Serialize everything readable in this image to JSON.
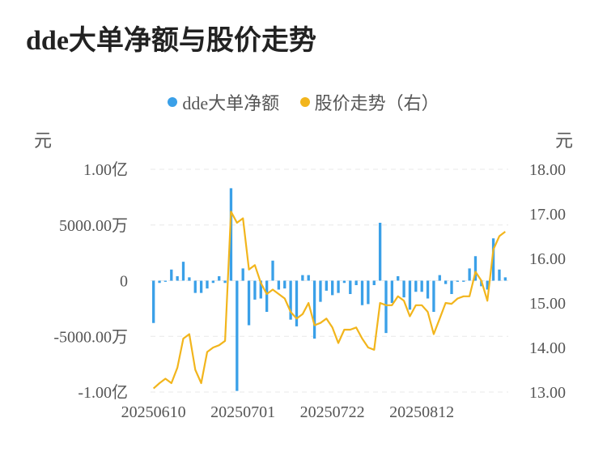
{
  "title": "dde大单净额与股价走势",
  "legend": {
    "bar_label": "dde大单净额",
    "line_label": "股价走势（右）"
  },
  "units": {
    "left": "元",
    "right": "元"
  },
  "colors": {
    "bar": "#3aa0e8",
    "line": "#f2b51c"
  },
  "chart_data": {
    "type": "bar+line",
    "title": "dde大单净额与股价走势",
    "left_axis": {
      "min": -10000,
      "max": 10000,
      "ticks": [
        {
          "value": 10000,
          "label": "1.00亿"
        },
        {
          "value": 5000,
          "label": "5000.00万"
        },
        {
          "value": 0,
          "label": "0"
        },
        {
          "value": -5000,
          "label": "-5000.00万"
        },
        {
          "value": -10000,
          "label": "-1.00亿"
        }
      ]
    },
    "right_axis": {
      "min": 13.0,
      "max": 18.0,
      "ticks": [
        {
          "value": 18.0,
          "label": "18.00"
        },
        {
          "value": 17.0,
          "label": "17.00"
        },
        {
          "value": 16.0,
          "label": "16.00"
        },
        {
          "value": 15.0,
          "label": "15.00"
        },
        {
          "value": 14.0,
          "label": "14.00"
        },
        {
          "value": 13.0,
          "label": "13.00"
        }
      ]
    },
    "x_tick_labels": [
      {
        "index": 0,
        "label": "20250610"
      },
      {
        "index": 15,
        "label": "20250701"
      },
      {
        "index": 30,
        "label": "20250722"
      },
      {
        "index": 45,
        "label": "20250812"
      }
    ],
    "grid": true,
    "series": [
      {
        "name": "dde大单净额",
        "kind": "bar",
        "axis": "left",
        "values": [
          -3800,
          -200,
          -100,
          1000,
          400,
          1700,
          300,
          -1100,
          -1100,
          -700,
          -200,
          400,
          -200,
          8300,
          -9900,
          1100,
          -4000,
          -1700,
          -1600,
          -2800,
          1800,
          -800,
          -700,
          -3500,
          -4100,
          500,
          500,
          -5200,
          -1900,
          -900,
          -1300,
          -1100,
          -200,
          -1200,
          -400,
          -2200,
          -2100,
          -400,
          5200,
          -4700,
          -2000,
          400,
          -1500,
          -2600,
          -1000,
          -1000,
          -1600,
          -2800,
          500,
          -300,
          -1200,
          -100,
          -100,
          1100,
          2200,
          -500,
          -800,
          3800,
          1000,
          300
        ]
      },
      {
        "name": "股价走势（右）",
        "kind": "line",
        "axis": "right",
        "values": [
          13.08,
          13.2,
          13.3,
          13.2,
          13.55,
          14.2,
          14.3,
          13.5,
          13.2,
          13.9,
          14.0,
          14.05,
          14.15,
          17.05,
          16.8,
          16.9,
          15.75,
          15.85,
          15.45,
          15.2,
          15.3,
          15.2,
          15.1,
          14.8,
          14.65,
          14.75,
          15.0,
          14.5,
          14.55,
          14.65,
          14.45,
          14.1,
          14.4,
          14.4,
          14.45,
          14.2,
          14.0,
          13.95,
          15.0,
          14.95,
          14.95,
          15.15,
          15.05,
          14.7,
          14.95,
          14.95,
          14.8,
          14.3,
          14.65,
          15.0,
          14.98,
          15.1,
          15.15,
          15.15,
          15.7,
          15.5,
          15.05,
          16.2,
          16.5,
          16.6
        ]
      }
    ]
  }
}
